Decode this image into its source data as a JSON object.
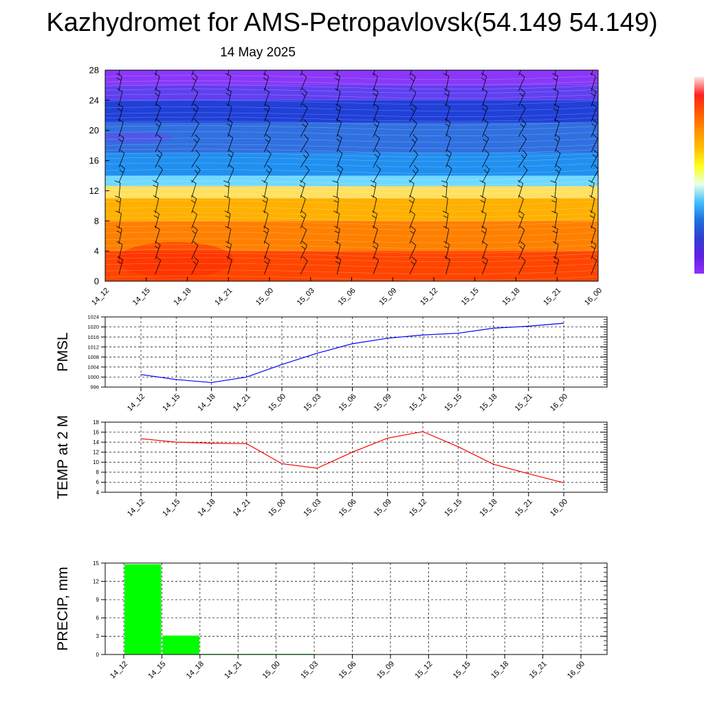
{
  "header": {
    "title": "Kazhydromet for AMS-Petropavlovsk(54.149 54.149)",
    "subtitle": "14 May 2025"
  },
  "chart_data": [
    {
      "type": "heatmap",
      "title": "",
      "xlabel": "",
      "ylabel": "",
      "x_ticks": [
        "14_12",
        "14_15",
        "14_18",
        "14_21",
        "15_00",
        "15_03",
        "15_06",
        "15_09",
        "15_12",
        "15_15",
        "15_18",
        "15_21",
        "16_00"
      ],
      "y_ticks": [
        0,
        4,
        8,
        12,
        16,
        20,
        24,
        28
      ],
      "ylim": [
        0,
        28
      ],
      "grid": false,
      "colorbar": {
        "position": "right",
        "colors": [
          "#ffe0e0",
          "#ff2020",
          "#ff5a00",
          "#ff9000",
          "#ffc000",
          "#ffff20",
          "#e8ffe8",
          "#40c0ff",
          "#2070e0",
          "#3040d0",
          "#6020e0",
          "#9030ff"
        ],
        "labels": []
      },
      "bands": [
        {
          "from": 0,
          "to": 4,
          "color": "#ff4500"
        },
        {
          "from": 4,
          "to": 8,
          "color": "#ff8000"
        },
        {
          "from": 8,
          "to": 11,
          "color": "#ffb000"
        },
        {
          "from": 11,
          "to": 12.6,
          "color": "#ffe060"
        },
        {
          "from": 12.6,
          "to": 14,
          "color": "#70d8ff"
        },
        {
          "from": 14,
          "to": 17,
          "color": "#2090f0"
        },
        {
          "from": 17,
          "to": 21,
          "color": "#3070e0"
        },
        {
          "from": 21,
          "to": 24,
          "color": "#2040d8"
        },
        {
          "from": 24,
          "to": 26,
          "color": "#6040f0"
        },
        {
          "from": 26,
          "to": 28,
          "color": "#8a38f8"
        }
      ],
      "wind_barbs": true
    },
    {
      "type": "line",
      "title": "",
      "ylabel": "PMSL",
      "xlabel": "",
      "categories": [
        "14_12",
        "14_15",
        "14_18",
        "14_21",
        "15_00",
        "15_03",
        "15_06",
        "15_09",
        "15_12",
        "15_15",
        "15_18",
        "15_21",
        "16_00"
      ],
      "series": [
        {
          "values": [
            1001,
            999,
            997.8,
            1000,
            1005,
            1009.5,
            1013.3,
            1015.5,
            1016.8,
            1017.5,
            1019.5,
            1020.3,
            1021.5
          ],
          "color": "#0000ff"
        }
      ],
      "ylim": [
        996,
        1024
      ],
      "y_ticks": [
        996,
        1000,
        1004,
        1008,
        1012,
        1016,
        1020,
        1024
      ],
      "grid": true
    },
    {
      "type": "line",
      "title": "",
      "ylabel": "TEMP at 2 M",
      "xlabel": "",
      "categories": [
        "14_12",
        "14_15",
        "14_18",
        "14_21",
        "15_00",
        "15_03",
        "15_06",
        "15_09",
        "15_12",
        "15_15",
        "15_18",
        "15_21",
        "16_00"
      ],
      "series": [
        {
          "values": [
            14.7,
            14,
            13.8,
            13.7,
            9.7,
            8.8,
            12,
            14.8,
            16.1,
            13.1,
            9.6,
            7.7,
            5.9
          ],
          "color": "#ff0000"
        }
      ],
      "ylim": [
        4,
        18
      ],
      "y_ticks": [
        4,
        6,
        8,
        10,
        12,
        14,
        16,
        18
      ],
      "grid": true
    },
    {
      "type": "bar",
      "title": "",
      "ylabel": "PRECIP, mm",
      "xlabel": "",
      "categories": [
        "14_12",
        "14_15",
        "14_18",
        "14_21",
        "15_00",
        "15_03",
        "15_06",
        "15_09",
        "15_12",
        "15_15",
        "15_18",
        "15_21",
        "16_00"
      ],
      "values": [
        0,
        14.8,
        3.1,
        0.1,
        0.1,
        0.1,
        0,
        0,
        0,
        0,
        0,
        0,
        0
      ],
      "color": "#00ff00",
      "ylim": [
        0,
        15
      ],
      "y_ticks": [
        0,
        3,
        6,
        9,
        12,
        15
      ],
      "grid": true
    }
  ]
}
